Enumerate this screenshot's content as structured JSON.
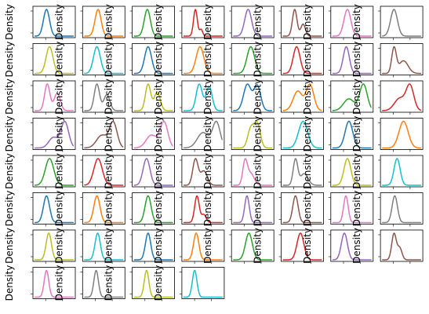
{
  "chart_data": {
    "type": "line",
    "title": "",
    "ylabel": "Density",
    "subplot_grid": {
      "rows": 8,
      "cols": 8,
      "panels": 60
    },
    "color_cycle": [
      "#1f77b4",
      "#ff7f0e",
      "#2ca02c",
      "#d62728",
      "#9467bd",
      "#8c564b",
      "#e377c2",
      "#7f7f7f",
      "#bcbd22",
      "#17becf"
    ],
    "x_domain": [
      0,
      1
    ],
    "y_domain": [
      0,
      1
    ],
    "shapes": [
      [
        [
          0.3,
          0.08,
          1.0
        ]
      ],
      [
        [
          0.35,
          0.08,
          1.0
        ]
      ],
      [
        [
          0.34,
          0.08,
          1.0
        ]
      ],
      [
        [
          0.3,
          0.05,
          1.0
        ],
        [
          0.45,
          0.04,
          0.25
        ]
      ],
      [
        [
          0.38,
          0.09,
          1.0
        ]
      ],
      [
        [
          0.3,
          0.06,
          1.0
        ],
        [
          0.52,
          0.06,
          0.45
        ]
      ],
      [
        [
          0.38,
          0.09,
          1.0
        ]
      ],
      [
        [
          0.3,
          0.09,
          1.0
        ]
      ],
      [
        [
          0.38,
          0.09,
          1.0
        ]
      ],
      [
        [
          0.32,
          0.09,
          1.0
        ]
      ],
      [
        [
          0.36,
          0.09,
          1.0
        ]
      ],
      [
        [
          0.42,
          0.1,
          1.0
        ]
      ],
      [
        [
          0.45,
          0.1,
          1.0
        ]
      ],
      [
        [
          0.35,
          0.09,
          1.0
        ]
      ],
      [
        [
          0.35,
          0.08,
          1.0
        ]
      ],
      [
        [
          0.3,
          0.06,
          1.0
        ],
        [
          0.55,
          0.12,
          0.5
        ]
      ],
      [
        [
          0.32,
          0.07,
          1.0
        ],
        [
          0.58,
          0.08,
          0.65
        ]
      ],
      [
        [
          0.32,
          0.07,
          1.0
        ],
        [
          0.58,
          0.08,
          0.6
        ]
      ],
      [
        [
          0.36,
          0.07,
          1.0
        ],
        [
          0.6,
          0.08,
          0.7
        ]
      ],
      [
        [
          0.4,
          0.08,
          1.0
        ],
        [
          0.66,
          0.08,
          0.9
        ]
      ],
      [
        [
          0.36,
          0.1,
          1.0
        ],
        [
          0.62,
          0.09,
          0.95
        ]
      ],
      [
        [
          0.38,
          0.12,
          0.75
        ],
        [
          0.7,
          0.1,
          1.0
        ]
      ],
      [
        [
          0.42,
          0.14,
          0.45
        ],
        [
          0.8,
          0.1,
          1.0
        ]
      ],
      [
        [
          0.45,
          0.14,
          0.5
        ],
        [
          0.72,
          0.1,
          1.0
        ]
      ],
      [
        [
          0.48,
          0.12,
          0.4
        ],
        [
          0.78,
          0.1,
          1.0
        ]
      ],
      [
        [
          0.45,
          0.14,
          0.5
        ],
        [
          0.75,
          0.1,
          1.0
        ]
      ],
      [
        [
          0.45,
          0.14,
          0.5
        ],
        [
          0.78,
          0.1,
          1.0
        ]
      ],
      [
        [
          0.5,
          0.15,
          0.6
        ],
        [
          0.85,
          0.1,
          1.0
        ]
      ],
      [
        [
          0.45,
          0.08,
          0.8
        ],
        [
          0.62,
          0.08,
          1.0
        ]
      ],
      [
        [
          0.52,
          0.12,
          1.0
        ]
      ],
      [
        [
          0.42,
          0.1,
          1.0
        ]
      ],
      [
        [
          0.55,
          0.12,
          1.0
        ]
      ],
      [
        [
          0.38,
          0.11,
          1.0
        ]
      ],
      [
        [
          0.35,
          0.11,
          1.0
        ]
      ],
      [
        [
          0.32,
          0.09,
          1.0
        ]
      ],
      [
        [
          0.3,
          0.07,
          1.0
        ],
        [
          0.52,
          0.09,
          0.55
        ]
      ],
      [
        [
          0.3,
          0.06,
          1.0
        ],
        [
          0.45,
          0.09,
          0.5
        ]
      ],
      [
        [
          0.32,
          0.06,
          1.0
        ],
        [
          0.55,
          0.1,
          0.45
        ]
      ],
      [
        [
          0.38,
          0.09,
          1.0
        ]
      ],
      [
        [
          0.38,
          0.08,
          1.0
        ]
      ],
      [
        [
          0.3,
          0.08,
          1.0
        ]
      ],
      [
        [
          0.32,
          0.08,
          1.0
        ]
      ],
      [
        [
          0.36,
          0.08,
          1.0
        ]
      ],
      [
        [
          0.34,
          0.06,
          1.0
        ],
        [
          0.52,
          0.06,
          0.3
        ]
      ],
      [
        [
          0.35,
          0.06,
          1.0
        ]
      ],
      [
        [
          0.32,
          0.07,
          1.0
        ]
      ],
      [
        [
          0.34,
          0.06,
          1.0
        ]
      ],
      [
        [
          0.32,
          0.07,
          1.0
        ]
      ],
      [
        [
          0.36,
          0.07,
          1.0
        ]
      ],
      [
        [
          0.34,
          0.07,
          1.0
        ]
      ],
      [
        [
          0.36,
          0.07,
          1.0
        ]
      ],
      [
        [
          0.32,
          0.07,
          1.0
        ]
      ],
      [
        [
          0.4,
          0.09,
          1.0
        ]
      ],
      [
        [
          0.45,
          0.09,
          1.0
        ]
      ],
      [
        [
          0.3,
          0.08,
          1.0
        ]
      ],
      [
        [
          0.3,
          0.06,
          1.0
        ],
        [
          0.45,
          0.06,
          0.45
        ]
      ],
      [
        [
          0.3,
          0.06,
          1.0
        ]
      ],
      [
        [
          0.3,
          0.06,
          1.0
        ]
      ],
      [
        [
          0.32,
          0.06,
          1.0
        ]
      ],
      [
        [
          0.28,
          0.06,
          1.0
        ]
      ]
    ]
  }
}
